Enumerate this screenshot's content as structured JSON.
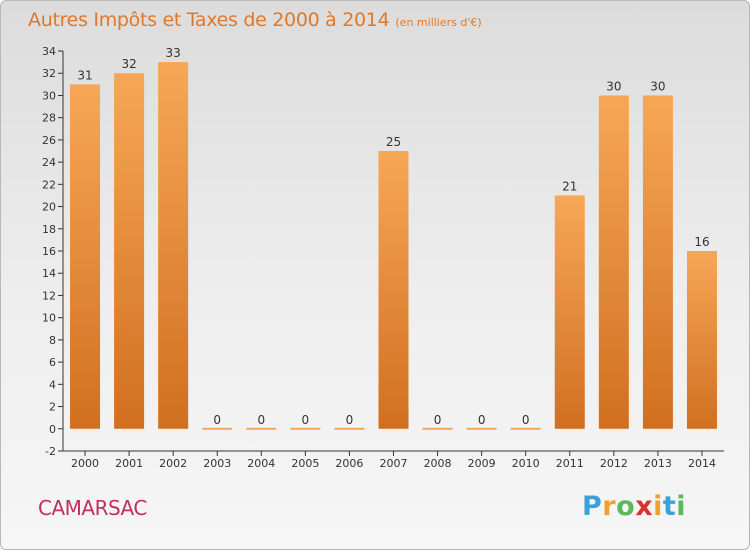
{
  "title": {
    "main": "Autres Impôts et Taxes de 2000 à 2014",
    "unit": "(en milliers d'€)"
  },
  "commune": "CAMARSAC",
  "logo": {
    "letters": [
      "P",
      "r",
      "o",
      "x",
      "i",
      "t",
      "i"
    ],
    "colors": [
      "#3aa1d9",
      "#f0a02c",
      "#5cb85c",
      "#d9342b",
      "#f0a02c",
      "#3aa1d9",
      "#5cb85c"
    ]
  },
  "colors": {
    "title": "#e0782a",
    "commune": "#c0305a",
    "bar_light": "#f6a756",
    "bar_dark": "#d07020",
    "axis": "#333333"
  },
  "chart_data": {
    "type": "bar",
    "categories": [
      "2000",
      "2001",
      "2002",
      "2003",
      "2004",
      "2005",
      "2006",
      "2007",
      "2008",
      "2009",
      "2010",
      "2011",
      "2012",
      "2013",
      "2014"
    ],
    "values": [
      31,
      32,
      33,
      0,
      0,
      0,
      0,
      25,
      0,
      0,
      0,
      21,
      30,
      30,
      16
    ],
    "data_labels": [
      "31",
      "32",
      "33",
      "0",
      "0",
      "0",
      "0",
      "25",
      "0",
      "0",
      "0",
      "21",
      "30",
      "30",
      "16"
    ],
    "y_ticks": [
      "-2",
      "0",
      "2",
      "4",
      "6",
      "8",
      "10",
      "12",
      "14",
      "16",
      "18",
      "20",
      "22",
      "24",
      "26",
      "28",
      "30",
      "32",
      "34"
    ],
    "ylim": [
      -2,
      34
    ],
    "grid": false,
    "legend": "none"
  }
}
